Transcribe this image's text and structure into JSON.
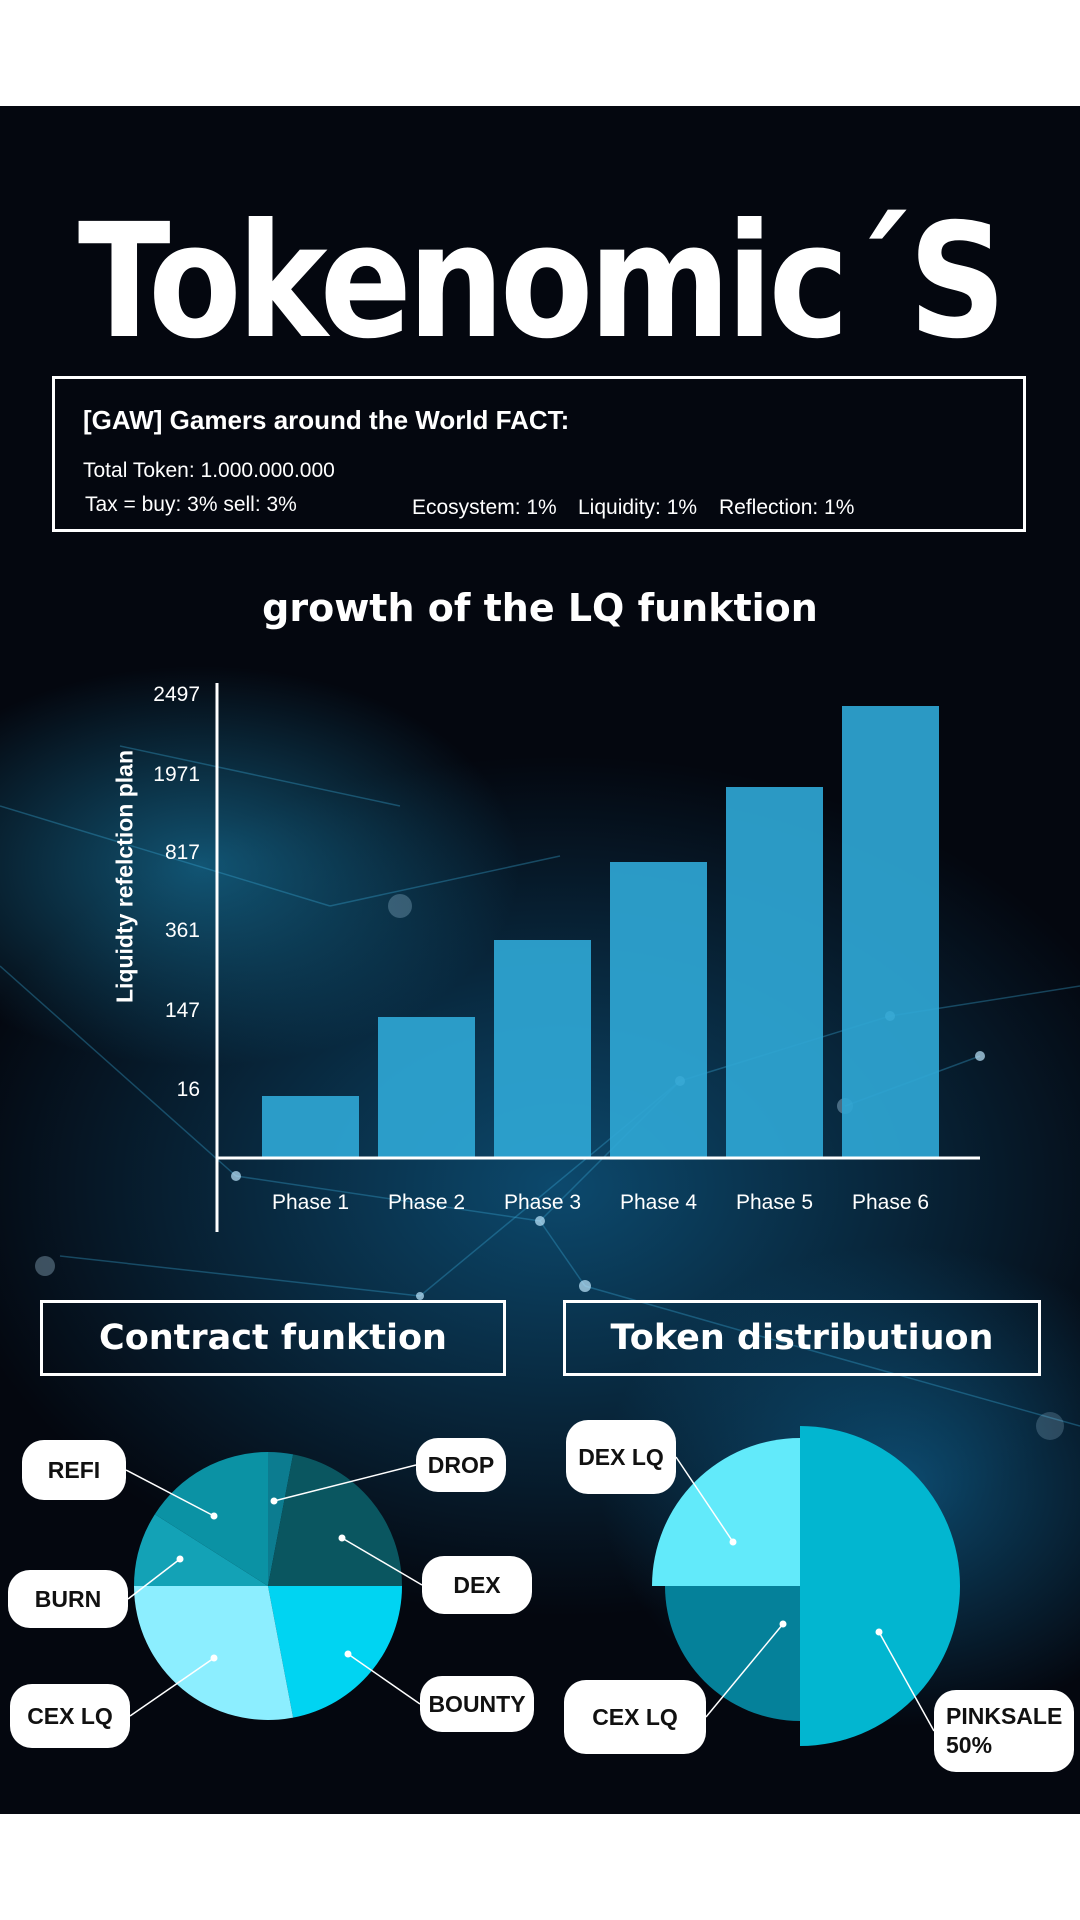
{
  "title": "Tokenomic´S",
  "fact": {
    "heading": "[GAW] Gamers around the World FACT:",
    "total_token": "Total Token: 1.000.000.000",
    "tax": "Tax = buy: 3%  sell: 3%",
    "ecosystem": "Ecosystem: 1%",
    "liquidity": "Liquidity: 1%",
    "reflection": "Reflection: 1%"
  },
  "colors": {
    "background": "#04070f",
    "bar": "#2fa6d4",
    "text": "#ffffff"
  },
  "chart_data": [
    {
      "type": "bar",
      "title": "growth of the LQ funktion",
      "ylabel": "Liquidty refelction plan",
      "xlabel": "",
      "categories": [
        "Phase 1",
        "Phase 2",
        "Phase 3",
        "Phase 4",
        "Phase 5",
        "Phase 6"
      ],
      "values": [
        16,
        147,
        361,
        817,
        1971,
        2497
      ],
      "y_ticks": [
        "16",
        "147",
        "361",
        "817",
        "1971",
        "2497"
      ],
      "grid": false,
      "legend": "none"
    },
    {
      "type": "pie",
      "title": "Contract funktion",
      "labels": [
        "DROP",
        "DEX",
        "BOUNTY",
        "CEX LQ",
        "BURN",
        "REFI"
      ],
      "values": [
        3,
        22,
        22,
        28,
        9,
        16
      ],
      "colors": [
        "#0c7c90",
        "#0a5660",
        "#00d4f2",
        "#8ceeff",
        "#13a2b6",
        "#0b92a4"
      ]
    },
    {
      "type": "pie",
      "title": "Token distributiuon",
      "labels": [
        "PINKSALE\n50%",
        "CEX LQ",
        "DEX LQ"
      ],
      "values": [
        50,
        25,
        25
      ],
      "colors": [
        "#02b6d0",
        "#05819a",
        "#62eafa"
      ]
    }
  ]
}
